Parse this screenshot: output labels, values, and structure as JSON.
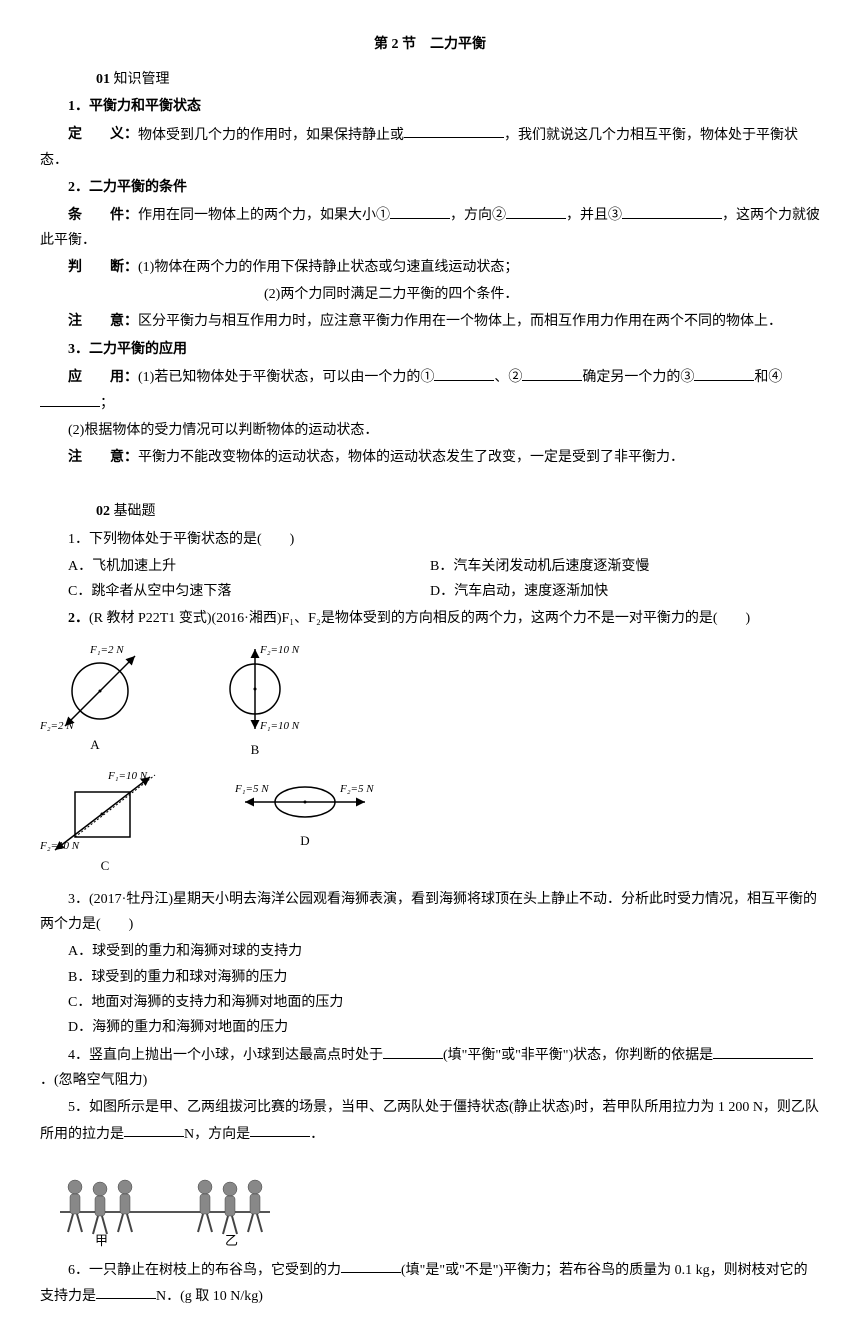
{
  "header": {
    "title": "第 2 节　二力平衡"
  },
  "section01": {
    "num": "01",
    "title": "知识管理",
    "item1": {
      "heading": "1．平衡力和平衡状态",
      "def_label": "定　　义：",
      "def_text_a": "物体受到几个力的作用时，如果保持静止或",
      "def_text_b": "，我们就说这几个力相互平衡，物体处于平衡状态．"
    },
    "item2": {
      "heading": "2．二力平衡的条件",
      "cond_label": "条　　件：",
      "cond_text_a": "作用在同一物体上的两个力，如果大小①",
      "cond_text_b": "，方向②",
      "cond_text_c": "，并且③",
      "cond_text_d": "，这两个力就彼此平衡．",
      "judge_label": "判　　断：",
      "judge_1": "(1)物体在两个力的作用下保持静止状态或匀速直线运动状态；",
      "judge_2": "(2)两个力同时满足二力平衡的四个条件．",
      "note_label": "注　　意：",
      "note_text": "区分平衡力与相互作用力时，应注意平衡力作用在一个物体上，而相互作用力作用在两个不同的物体上．"
    },
    "item3": {
      "heading": "3．二力平衡的应用",
      "app_label": "应　　用：",
      "app_text_a": "(1)若已知物体处于平衡状态，可以由一个力的①",
      "app_text_b": "、②",
      "app_text_c": "确定另一个力的③",
      "app_text_d": "和④",
      "app_text_e": "；",
      "app_2": "(2)根据物体的受力情况可以判断物体的运动状态．",
      "note_label": "注　　意：",
      "note_text": "平衡力不能改变物体的运动状态，物体的运动状态发生了改变，一定是受到了非平衡力．"
    }
  },
  "section02": {
    "num": "02",
    "title": "基础题",
    "q1": {
      "stem": "1．下列物体处于平衡状态的是(　　)",
      "optA": "A．飞机加速上升",
      "optB": "B．汽车关闭发动机后速度逐渐变慢",
      "optC": "C．跳伞者从空中匀速下落",
      "optD": "D．汽车启动，速度逐渐加快"
    },
    "q2": {
      "stem_a": "2．",
      "stem_b": "(R 教材 P22T1 变式)(2016·湘西)F₁、F₂是物体受到的方向相反的两个力，这两个力不是一对平衡力的是(　　)",
      "diagrams": {
        "A": {
          "F1": "F₁=2 N",
          "F2": "F₂=2 N",
          "label": "A"
        },
        "B": {
          "F1": "F₁=10 N",
          "F2": "F₂=10 N",
          "label": "B"
        },
        "C": {
          "F1": "F₁=10 N",
          "F2": "F₂=10 N",
          "label": "C"
        },
        "D": {
          "F1": "F₁=5 N",
          "F2": "F₂=5 N",
          "label": "D"
        }
      }
    },
    "q3": {
      "stem": "3．(2017·牡丹江)星期天小明去海洋公园观看海狮表演，看到海狮将球顶在头上静止不动．分析此时受力情况，相互平衡的两个力是(　　)",
      "optA": "A．球受到的重力和海狮对球的支持力",
      "optB": "B．球受到的重力和球对海狮的压力",
      "optC": "C．地面对海狮的支持力和海狮对地面的压力",
      "optD": "D．海狮的重力和海狮对地面的压力"
    },
    "q4": {
      "text_a": "4．竖直向上抛出一个小球，小球到达最高点时处于",
      "text_b": "(填\"平衡\"或\"非平衡\")状态，你判断的依据是",
      "text_c": "．(忽略空气阻力)"
    },
    "q5": {
      "text_a": "5．如图所示是甲、乙两组拔河比赛的场景，当甲、乙两队处于僵持状态(静止状态)时，若甲队所用拉力为 1 200 N，则乙队所用的拉力是",
      "text_b": "N，方向是",
      "text_c": "．",
      "left_label": "甲",
      "right_label": "乙"
    },
    "q6": {
      "text_a": "6．一只静止在树枝上的布谷鸟，它受到的力",
      "text_b": "(填\"是\"或\"不是\")平衡力；若布谷鸟的质量为 0.1 kg，则树枝对它的支持力是",
      "text_c": "N．(g 取 10 N/kg)"
    }
  }
}
